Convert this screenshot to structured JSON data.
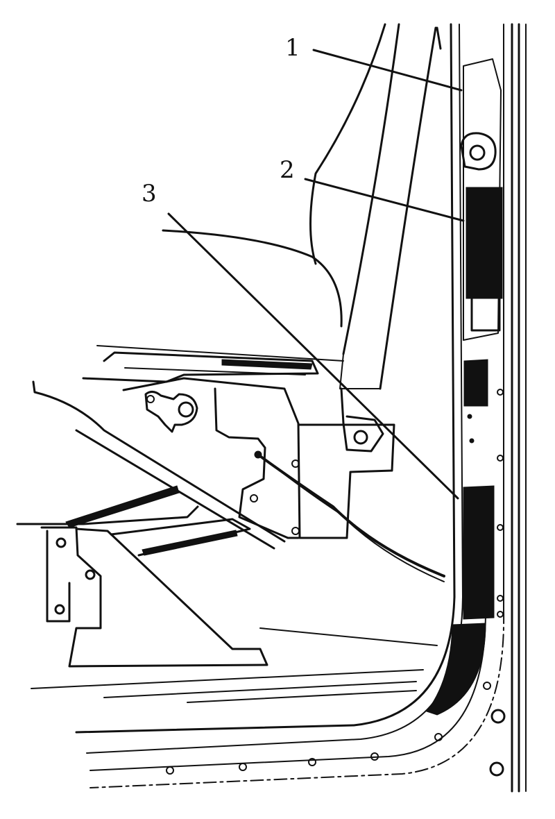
{
  "callouts": [
    {
      "id": "1",
      "text": "1"
    },
    {
      "id": "2",
      "text": "2"
    },
    {
      "id": "3",
      "text": "3"
    }
  ],
  "colors": {
    "ink": "#111111",
    "background": "#ffffff"
  }
}
